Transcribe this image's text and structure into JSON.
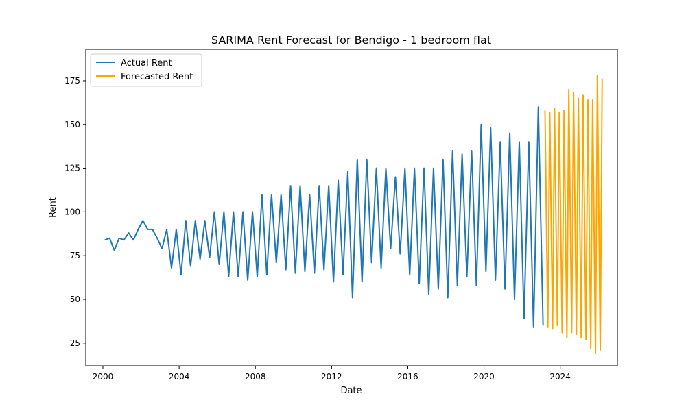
{
  "chart_data": {
    "type": "line",
    "title": "SARIMA Rent Forecast for Bendigo - 1 bedroom flat",
    "xlabel": "Date",
    "ylabel": "Rent",
    "xlim": [
      1999.1,
      2027.0
    ],
    "ylim": [
      12,
      193
    ],
    "xticks": [
      2000,
      2004,
      2008,
      2012,
      2016,
      2020,
      2024
    ],
    "yticks": [
      25,
      50,
      75,
      100,
      125,
      150,
      175
    ],
    "legend_position": "upper-left",
    "grid": false,
    "series": [
      {
        "name": "Actual Rent",
        "color": "#1f77b4",
        "x": [
          2000.1,
          2000.35,
          2000.6,
          2000.85,
          2001.1,
          2001.35,
          2001.6,
          2001.85,
          2002.1,
          2002.35,
          2002.6,
          2002.85,
          2003.1,
          2003.35,
          2003.6,
          2003.85,
          2004.1,
          2004.35,
          2004.6,
          2004.85,
          2005.1,
          2005.35,
          2005.6,
          2005.85,
          2006.1,
          2006.35,
          2006.6,
          2006.85,
          2007.1,
          2007.35,
          2007.6,
          2007.85,
          2008.1,
          2008.35,
          2008.6,
          2008.85,
          2009.1,
          2009.35,
          2009.6,
          2009.85,
          2010.1,
          2010.35,
          2010.6,
          2010.85,
          2011.1,
          2011.35,
          2011.6,
          2011.85,
          2012.1,
          2012.35,
          2012.6,
          2012.85,
          2013.1,
          2013.35,
          2013.6,
          2013.85,
          2014.1,
          2014.35,
          2014.6,
          2014.85,
          2015.1,
          2015.35,
          2015.6,
          2015.85,
          2016.1,
          2016.35,
          2016.6,
          2016.85,
          2017.1,
          2017.35,
          2017.6,
          2017.85,
          2018.1,
          2018.35,
          2018.6,
          2018.85,
          2019.1,
          2019.35,
          2019.6,
          2019.85,
          2020.1,
          2020.35,
          2020.6,
          2020.85,
          2021.1,
          2021.35,
          2021.6,
          2021.85,
          2022.1,
          2022.35,
          2022.6,
          2022.85,
          2023.1
        ],
        "y": [
          84,
          85,
          78,
          85,
          84,
          88,
          84,
          90,
          95,
          90,
          90,
          85,
          79,
          90,
          68,
          90,
          64,
          95,
          69,
          95,
          73,
          95,
          74,
          100,
          70,
          100,
          63,
          100,
          63,
          100,
          61,
          100,
          63,
          110,
          64,
          110,
          71,
          110,
          67,
          115,
          65,
          115,
          66,
          110,
          65,
          115,
          67,
          115,
          60,
          118,
          64,
          123,
          51,
          130,
          60,
          130,
          71,
          125,
          68,
          125,
          79,
          120,
          76,
          125,
          64,
          125,
          59,
          125,
          53,
          125,
          56,
          130,
          51,
          135,
          58,
          133,
          63,
          135,
          58,
          150,
          66,
          148,
          61,
          140,
          56,
          145,
          50,
          140,
          39,
          140,
          34,
          160,
          35
        ]
      },
      {
        "name": "Forecasted Rent",
        "color": "#ffa500",
        "x": [
          2023.2,
          2023.35,
          2023.45,
          2023.6,
          2023.7,
          2023.85,
          2023.95,
          2024.1,
          2024.2,
          2024.35,
          2024.45,
          2024.6,
          2024.7,
          2024.85,
          2024.95,
          2025.1,
          2025.2,
          2025.35,
          2025.45,
          2025.6,
          2025.7,
          2025.85,
          2025.95,
          2026.1,
          2026.2
        ],
        "y": [
          158,
          34,
          157,
          33,
          159,
          35,
          157,
          31,
          158,
          28,
          170,
          31,
          168,
          30,
          165,
          28,
          167,
          27,
          164,
          22,
          164,
          19,
          178,
          21,
          176
        ]
      }
    ]
  }
}
